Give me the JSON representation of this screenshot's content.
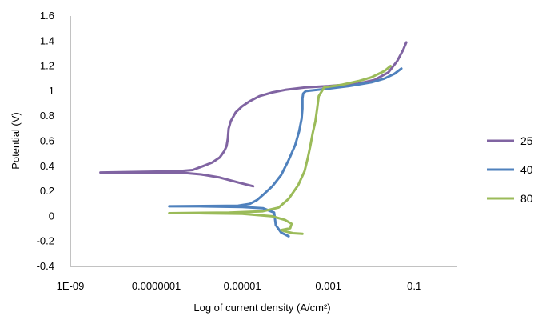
{
  "chart_data": {
    "type": "line",
    "title": "",
    "xlabel": "Log of current density (A/cm²)",
    "ylabel": "Potential (V)",
    "x_scale": "log",
    "xlim": [
      1e-09,
      1
    ],
    "ylim": [
      -0.4,
      1.6
    ],
    "x_ticks": [
      1e-09,
      1e-07,
      1e-05,
      0.001,
      0.1
    ],
    "x_tick_labels": [
      "1E-09",
      "0.0000001",
      "0.00001",
      "0.001",
      "0.1"
    ],
    "y_ticks": [
      -0.4,
      -0.2,
      0,
      0.2,
      0.4,
      0.6,
      0.8,
      1,
      1.2,
      1.4,
      1.6
    ],
    "y_tick_labels": [
      "-0.4",
      "-0.2",
      "0",
      "0.2",
      "0.4",
      "0.6",
      "0.8",
      "1",
      "1.2",
      "1.4",
      "1.6"
    ],
    "grid": false,
    "legend_position": "right",
    "series": [
      {
        "name": "25",
        "color": "#8064A2",
        "points": [
          [
            1.8e-05,
            0.24
          ],
          [
            8e-06,
            0.27
          ],
          [
            3e-06,
            0.31
          ],
          [
            1.1e-06,
            0.335
          ],
          [
            5e-07,
            0.345
          ],
          [
            1e-07,
            0.35
          ],
          [
            1e-08,
            0.35
          ],
          [
            5e-09,
            0.35
          ],
          [
            5e-08,
            0.355
          ],
          [
            3e-07,
            0.36
          ],
          [
            7e-07,
            0.37
          ],
          [
            1.2e-06,
            0.4
          ],
          [
            2e-06,
            0.43
          ],
          [
            3e-06,
            0.47
          ],
          [
            3.8e-06,
            0.52
          ],
          [
            4.3e-06,
            0.56
          ],
          [
            4.6e-06,
            0.62
          ],
          [
            4.8e-06,
            0.7
          ],
          [
            5.4e-06,
            0.76
          ],
          [
            7e-06,
            0.83
          ],
          [
            1e-05,
            0.88
          ],
          [
            1.5e-05,
            0.92
          ],
          [
            2.5e-05,
            0.96
          ],
          [
            5e-05,
            0.99
          ],
          [
            0.0001,
            1.01
          ],
          [
            0.0003,
            1.03
          ],
          [
            0.001,
            1.04
          ],
          [
            0.005,
            1.06
          ],
          [
            0.012,
            1.09
          ],
          [
            0.025,
            1.15
          ],
          [
            0.04,
            1.24
          ],
          [
            0.055,
            1.33
          ],
          [
            0.065,
            1.39
          ]
        ]
      },
      {
        "name": "40",
        "color": "#4F81BD",
        "points": [
          [
            0.00012,
            -0.16
          ],
          [
            8e-05,
            -0.13
          ],
          [
            6e-05,
            -0.07
          ],
          [
            5.5e-05,
            0.03
          ],
          [
            3e-05,
            0.065
          ],
          [
            1e-05,
            0.075
          ],
          [
            1e-06,
            0.08
          ],
          [
            2e-07,
            0.08
          ],
          [
            8e-06,
            0.085
          ],
          [
            1.5e-05,
            0.1
          ],
          [
            2.2e-05,
            0.13
          ],
          [
            3e-05,
            0.17
          ],
          [
            5e-05,
            0.24
          ],
          [
            8e-05,
            0.33
          ],
          [
            0.00012,
            0.45
          ],
          [
            0.00017,
            0.57
          ],
          [
            0.00021,
            0.68
          ],
          [
            0.00024,
            0.78
          ],
          [
            0.00025,
            0.86
          ],
          [
            0.00025,
            0.94
          ],
          [
            0.00026,
            0.98
          ],
          [
            0.0003,
            1.0
          ],
          [
            0.001,
            1.02
          ],
          [
            0.003,
            1.04
          ],
          [
            0.01,
            1.07
          ],
          [
            0.02,
            1.1
          ],
          [
            0.035,
            1.14
          ],
          [
            0.05,
            1.18
          ]
        ]
      },
      {
        "name": "80",
        "color": "#9BBB59",
        "points": [
          [
            0.00025,
            -0.14
          ],
          [
            0.00015,
            -0.135
          ],
          [
            0.0001,
            -0.12
          ],
          [
            8e-05,
            -0.11
          ],
          [
            0.00013,
            -0.095
          ],
          [
            0.00014,
            -0.06
          ],
          [
            0.0001,
            -0.03
          ],
          [
            5e-05,
            0.0
          ],
          [
            1e-05,
            0.02
          ],
          [
            1e-06,
            0.025
          ],
          [
            2e-07,
            0.025
          ],
          [
            5e-06,
            0.03
          ],
          [
            3e-05,
            0.04
          ],
          [
            7e-05,
            0.07
          ],
          [
            0.00012,
            0.14
          ],
          [
            0.0002,
            0.25
          ],
          [
            0.00028,
            0.36
          ],
          [
            0.00033,
            0.46
          ],
          [
            0.00038,
            0.56
          ],
          [
            0.00043,
            0.66
          ],
          [
            0.0005,
            0.76
          ],
          [
            0.00055,
            0.86
          ],
          [
            0.0006,
            0.96
          ],
          [
            0.0008,
            1.03
          ],
          [
            0.002,
            1.05
          ],
          [
            0.005,
            1.08
          ],
          [
            0.01,
            1.11
          ],
          [
            0.02,
            1.16
          ],
          [
            0.028,
            1.2
          ]
        ]
      }
    ]
  }
}
